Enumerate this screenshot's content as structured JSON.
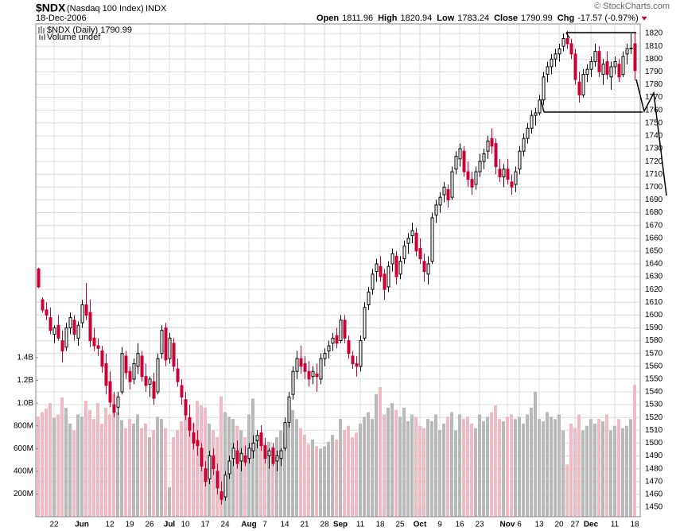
{
  "chart_data": {
    "type": "candlestick",
    "header": {
      "symbol": "$NDX",
      "name": "(Nasdaq 100 Index)",
      "exchange": "INDX",
      "date": "18-Dec-2006",
      "copyright": "© StockCharts.com",
      "quote": [
        {
          "label": "Open",
          "value": "1811.96"
        },
        {
          "label": "High",
          "value": "1820.94"
        },
        {
          "label": "Low",
          "value": "1783.24"
        },
        {
          "label": "Close",
          "value": "1790.99"
        },
        {
          "label": "Chg",
          "value": "-17.57 (-0.97%)"
        }
      ]
    },
    "legend": [
      "$NDX (Daily) 1790.99",
      "Volume undef"
    ],
    "categories": [
      null,
      null,
      null,
      null,
      "22",
      null,
      null,
      null,
      null,
      null,
      null,
      "Jun",
      null,
      null,
      null,
      null,
      null,
      null,
      "12",
      null,
      null,
      null,
      null,
      "19",
      null,
      null,
      null,
      null,
      "26",
      null,
      null,
      null,
      null,
      "Jul",
      null,
      null,
      null,
      "10",
      null,
      null,
      null,
      null,
      "17",
      null,
      null,
      null,
      null,
      "24",
      null,
      null,
      null,
      null,
      null,
      "Aug",
      null,
      null,
      null,
      "7",
      null,
      null,
      null,
      null,
      "14",
      null,
      null,
      null,
      null,
      "21",
      null,
      null,
      null,
      null,
      "28",
      null,
      null,
      null,
      "Sep",
      null,
      null,
      null,
      null,
      "11",
      null,
      null,
      null,
      null,
      "18",
      null,
      null,
      null,
      null,
      "25",
      null,
      null,
      null,
      null,
      "Oct",
      null,
      null,
      null,
      null,
      "9",
      null,
      null,
      null,
      null,
      "16",
      null,
      null,
      null,
      null,
      "23",
      null,
      null,
      null,
      null,
      null,
      null,
      "Nov",
      null,
      null,
      "6",
      null,
      null,
      null,
      null,
      "13",
      null,
      null,
      null,
      null,
      "20",
      null,
      null,
      null,
      "27",
      null,
      null,
      null,
      "Dec",
      null,
      null,
      null,
      null,
      null,
      "11",
      null,
      null,
      null,
      null,
      "18"
    ],
    "open": [
      1636,
      1612,
      1604,
      1598,
      1585,
      1592,
      1580,
      1575,
      1590,
      1596,
      1582,
      1594,
      1608,
      1602,
      1582,
      1576,
      1572,
      1562,
      1548,
      1530,
      1528,
      1540,
      1568,
      1556,
      1550,
      1560,
      1568,
      1552,
      1546,
      1548,
      1540,
      1570,
      1590,
      1566,
      1578,
      1558,
      1545,
      1534,
      1520,
      1508,
      1502,
      1496,
      1480,
      1472,
      1490,
      1478,
      1462,
      1458,
      1476,
      1488,
      1494,
      1486,
      1490,
      1488,
      1494,
      1502,
      1508,
      1498,
      1490,
      1496,
      1486,
      1488,
      1496,
      1516,
      1538,
      1556,
      1566,
      1562,
      1556,
      1552,
      1554,
      1550,
      1566,
      1572,
      1578,
      1584,
      1580,
      1596,
      1580,
      1568,
      1562,
      1560,
      1582,
      1608,
      1620,
      1634,
      1638,
      1632,
      1622,
      1640,
      1646,
      1632,
      1644,
      1656,
      1662,
      1664,
      1652,
      1642,
      1632,
      1642,
      1678,
      1686,
      1694,
      1698,
      1692,
      1714,
      1722,
      1728,
      1712,
      1706,
      1702,
      1712,
      1720,
      1728,
      1738,
      1734,
      1714,
      1708,
      1714,
      1704,
      1702,
      1714,
      1728,
      1738,
      1746,
      1756,
      1758,
      1768,
      1788,
      1794,
      1800,
      1804,
      1810,
      1816,
      1812,
      1804,
      1782,
      1772,
      1788,
      1792,
      1798,
      1806,
      1788,
      1798,
      1786,
      1794,
      1796,
      1788,
      1804,
      1808,
      1811.96
    ],
    "high": [
      1637,
      1614,
      1610,
      1606,
      1592,
      1600,
      1588,
      1594,
      1602,
      1600,
      1595,
      1612,
      1625,
      1612,
      1590,
      1582,
      1576,
      1570,
      1556,
      1540,
      1540,
      1575,
      1572,
      1560,
      1566,
      1578,
      1572,
      1562,
      1552,
      1555,
      1570,
      1592,
      1594,
      1586,
      1582,
      1566,
      1550,
      1540,
      1530,
      1516,
      1510,
      1500,
      1486,
      1494,
      1496,
      1484,
      1470,
      1478,
      1490,
      1500,
      1502,
      1496,
      1498,
      1500,
      1506,
      1510,
      1514,
      1504,
      1496,
      1500,
      1494,
      1496,
      1520,
      1540,
      1560,
      1572,
      1576,
      1568,
      1564,
      1560,
      1562,
      1570,
      1574,
      1580,
      1586,
      1590,
      1600,
      1600,
      1584,
      1572,
      1568,
      1584,
      1610,
      1622,
      1636,
      1644,
      1646,
      1636,
      1642,
      1652,
      1650,
      1646,
      1658,
      1664,
      1672,
      1668,
      1660,
      1648,
      1646,
      1680,
      1690,
      1696,
      1704,
      1702,
      1716,
      1728,
      1734,
      1732,
      1720,
      1712,
      1716,
      1726,
      1730,
      1740,
      1746,
      1738,
      1722,
      1718,
      1722,
      1710,
      1716,
      1732,
      1742,
      1750,
      1760,
      1762,
      1772,
      1790,
      1798,
      1804,
      1808,
      1812,
      1820,
      1822,
      1816,
      1808,
      1790,
      1792,
      1796,
      1802,
      1812,
      1810,
      1800,
      1806,
      1798,
      1802,
      1800,
      1806,
      1812,
      1820,
      1820.94
    ],
    "low": [
      1621,
      1602,
      1596,
      1585,
      1578,
      1580,
      1563,
      1572,
      1585,
      1580,
      1576,
      1590,
      1596,
      1575,
      1572,
      1568,
      1555,
      1538,
      1528,
      1520,
      1522,
      1538,
      1550,
      1542,
      1546,
      1554,
      1548,
      1540,
      1536,
      1530,
      1538,
      1566,
      1560,
      1562,
      1556,
      1544,
      1530,
      1518,
      1505,
      1495,
      1490,
      1478,
      1466,
      1468,
      1475,
      1460,
      1452,
      1455,
      1472,
      1482,
      1480,
      1478,
      1482,
      1484,
      1488,
      1496,
      1494,
      1484,
      1480,
      1482,
      1478,
      1482,
      1494,
      1512,
      1534,
      1550,
      1554,
      1550,
      1544,
      1546,
      1540,
      1546,
      1560,
      1566,
      1572,
      1574,
      1578,
      1578,
      1566,
      1558,
      1552,
      1556,
      1580,
      1604,
      1616,
      1626,
      1626,
      1612,
      1618,
      1634,
      1624,
      1628,
      1640,
      1648,
      1656,
      1646,
      1640,
      1626,
      1624,
      1640,
      1672,
      1680,
      1688,
      1684,
      1690,
      1710,
      1716,
      1708,
      1700,
      1694,
      1698,
      1708,
      1714,
      1722,
      1726,
      1710,
      1704,
      1700,
      1702,
      1694,
      1696,
      1710,
      1724,
      1734,
      1742,
      1748,
      1756,
      1764,
      1782,
      1788,
      1794,
      1798,
      1806,
      1808,
      1800,
      1780,
      1766,
      1770,
      1782,
      1786,
      1794,
      1786,
      1780,
      1784,
      1776,
      1788,
      1782,
      1786,
      1796,
      1804,
      1783.24
    ],
    "close": [
      1622,
      1604,
      1600,
      1588,
      1590,
      1582,
      1572,
      1590,
      1598,
      1585,
      1592,
      1608,
      1600,
      1580,
      1576,
      1574,
      1560,
      1545,
      1532,
      1524,
      1536,
      1570,
      1555,
      1548,
      1562,
      1570,
      1552,
      1545,
      1550,
      1535,
      1566,
      1588,
      1565,
      1582,
      1560,
      1548,
      1536,
      1522,
      1510,
      1500,
      1498,
      1482,
      1470,
      1490,
      1480,
      1465,
      1456,
      1475,
      1486,
      1496,
      1484,
      1492,
      1485,
      1496,
      1500,
      1506,
      1498,
      1488,
      1494,
      1484,
      1490,
      1494,
      1516,
      1536,
      1556,
      1566,
      1560,
      1556,
      1550,
      1556,
      1552,
      1566,
      1570,
      1576,
      1582,
      1578,
      1596,
      1582,
      1570,
      1562,
      1560,
      1580,
      1606,
      1618,
      1632,
      1640,
      1630,
      1620,
      1638,
      1648,
      1630,
      1642,
      1654,
      1660,
      1666,
      1650,
      1644,
      1634,
      1640,
      1676,
      1686,
      1692,
      1700,
      1690,
      1712,
      1724,
      1730,
      1712,
      1706,
      1700,
      1712,
      1720,
      1726,
      1736,
      1732,
      1716,
      1708,
      1714,
      1706,
      1700,
      1712,
      1728,
      1738,
      1746,
      1756,
      1758,
      1768,
      1786,
      1794,
      1800,
      1804,
      1808,
      1816,
      1812,
      1804,
      1784,
      1772,
      1788,
      1792,
      1798,
      1806,
      1790,
      1796,
      1788,
      1794,
      1798,
      1786,
      1802,
      1808,
      1808.56,
      1790.99
    ],
    "volume": [
      880,
      920,
      950,
      1000,
      870,
      900,
      1050,
      960,
      820,
      760,
      900,
      880,
      1020,
      940,
      860,
      1000,
      820,
      960,
      900,
      1080,
      920,
      850,
      780,
      860,
      820,
      900,
      780,
      820,
      700,
      760,
      880,
      860,
      780,
      260,
      700,
      760,
      840,
      900,
      860,
      820,
      1020,
      980,
      960,
      820,
      760,
      700,
      1060,
      920,
      880,
      860,
      800,
      760,
      700,
      900,
      1040,
      680,
      720,
      640,
      660,
      620,
      700,
      760,
      740,
      820,
      940,
      860,
      780,
      720,
      640,
      680,
      620,
      600,
      620,
      660,
      720,
      680,
      860,
      760,
      800,
      700,
      740,
      820,
      880,
      920,
      860,
      1080,
      1140,
      900,
      960,
      1000,
      940,
      880,
      960,
      840,
      900,
      880,
      800,
      780,
      860,
      840,
      900,
      760,
      820,
      880,
      920,
      760,
      900,
      860,
      880,
      820,
      780,
      900,
      840,
      880,
      920,
      980,
      860,
      840,
      880,
      900,
      860,
      880,
      820,
      900,
      960,
      1100,
      860,
      840,
      920,
      880,
      860,
      900,
      760,
      460,
      820,
      780,
      900,
      760,
      800,
      860,
      820,
      860,
      840,
      900,
      760,
      800,
      860,
      780,
      800,
      860,
      1160
    ],
    "ylim": [
      1442.5,
      1827.5
    ],
    "yticks": [
      1450,
      1460,
      1470,
      1480,
      1490,
      1500,
      1510,
      1520,
      1530,
      1540,
      1550,
      1560,
      1570,
      1580,
      1590,
      1600,
      1610,
      1620,
      1630,
      1640,
      1650,
      1660,
      1670,
      1680,
      1690,
      1700,
      1710,
      1720,
      1730,
      1740,
      1750,
      1760,
      1770,
      1780,
      1790,
      1800,
      1810,
      1820
    ],
    "volume_ylim": [
      0,
      4340
    ],
    "volume_ticks": [
      {
        "value": 200,
        "label": "200M"
      },
      {
        "value": 400,
        "label": "400M"
      },
      {
        "value": 600,
        "label": "600M"
      },
      {
        "value": 800,
        "label": "800M"
      },
      {
        "value": 1000,
        "label": "1.0B"
      },
      {
        "value": 1200,
        "label": "1.2B"
      },
      {
        "value": 1400,
        "label": "1.4B"
      }
    ],
    "grid": true,
    "up_color": "#000000",
    "down_color": "#cc0033",
    "volume_up_color": "#b9b9b9",
    "volume_down_color": "#f0b9c3"
  }
}
